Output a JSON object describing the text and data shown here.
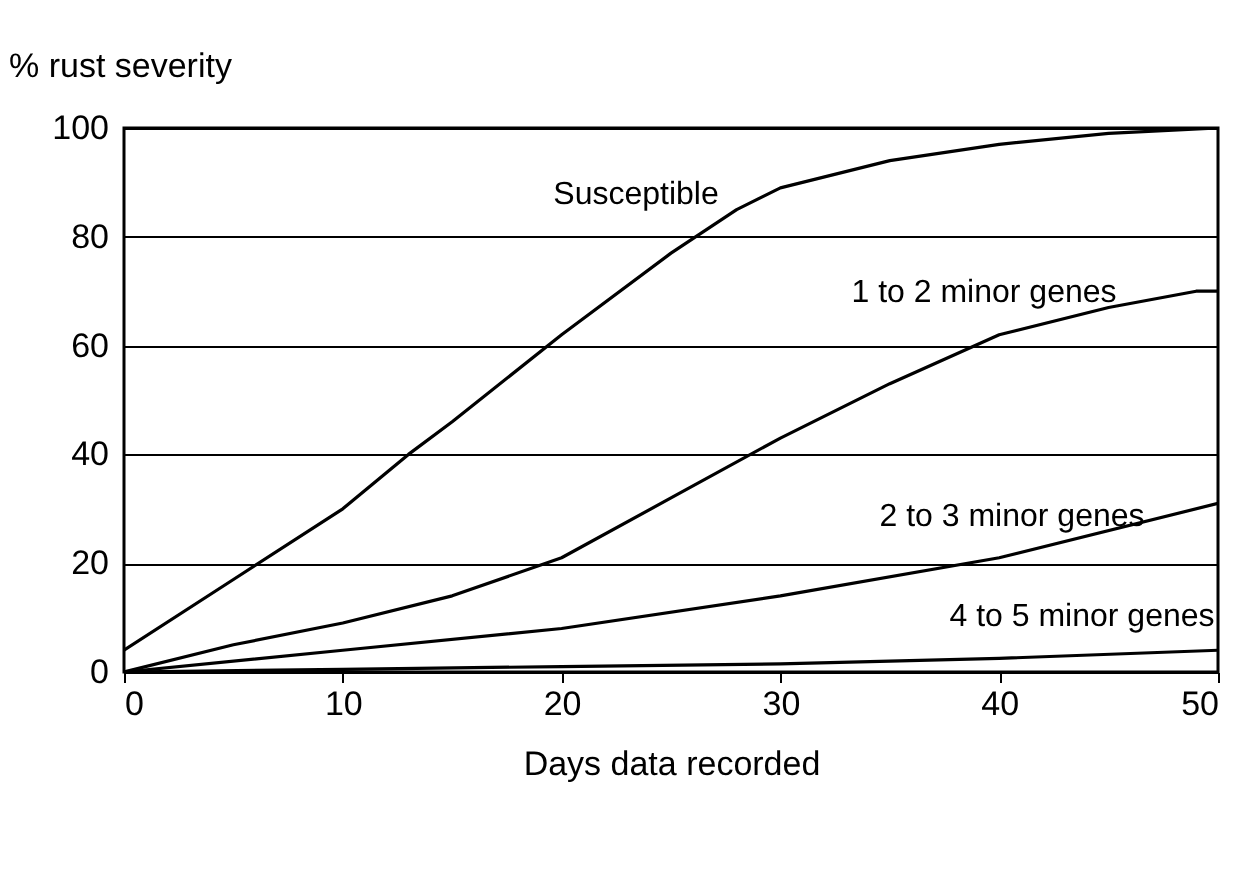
{
  "chart_data": {
    "type": "line",
    "xlabel": "Days data recorded",
    "ylabel": "% rust severity",
    "xlim": [
      0,
      50
    ],
    "ylim": [
      0,
      100
    ],
    "xticks": [
      0,
      10,
      20,
      30,
      40,
      50
    ],
    "yticks": [
      0,
      20,
      40,
      60,
      80,
      100
    ],
    "grid": "y",
    "legend": false,
    "marker": "none",
    "line_style": "solid",
    "series": [
      {
        "name": "Susceptible",
        "color": "#000000",
        "x": [
          0,
          5,
          10,
          13,
          15,
          20,
          25,
          28,
          30,
          35,
          40,
          45,
          50
        ],
        "values": [
          4,
          17,
          30,
          40,
          46,
          62,
          77,
          85,
          89,
          94,
          97,
          99,
          100
        ]
      },
      {
        "name": "1 to 2 minor genes",
        "color": "#000000",
        "x": [
          0,
          5,
          10,
          15,
          20,
          25,
          30,
          35,
          40,
          45,
          49,
          50
        ],
        "values": [
          0,
          5,
          9,
          14,
          21,
          32,
          43,
          53,
          62,
          67,
          70,
          70
        ]
      },
      {
        "name": "2 to 3 minor genes",
        "color": "#000000",
        "x": [
          0,
          10,
          20,
          30,
          40,
          50
        ],
        "values": [
          0,
          4,
          8,
          14,
          21,
          31
        ]
      },
      {
        "name": "4 to 5 minor genes",
        "color": "#000000",
        "x": [
          0,
          10,
          20,
          30,
          40,
          50
        ],
        "values": [
          0,
          0.5,
          1,
          1.5,
          2.5,
          4
        ]
      }
    ]
  }
}
